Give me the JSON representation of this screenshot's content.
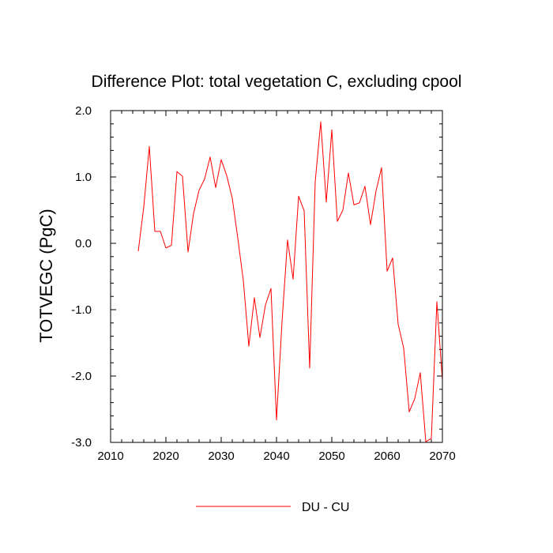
{
  "chart_data": {
    "type": "line",
    "title": "Difference Plot: total vegetation C, excluding cpool",
    "xlabel": "",
    "ylabel": "TOTVEGC  (PgC)",
    "xlim": [
      2010,
      2070
    ],
    "ylim": [
      -3.0,
      2.0
    ],
    "x_ticks": [
      2010,
      2020,
      2030,
      2040,
      2050,
      2060,
      2070
    ],
    "x_tick_labels": [
      "2010",
      "2020",
      "2030",
      "2040",
      "2050",
      "2060",
      "2070"
    ],
    "y_ticks": [
      -3.0,
      -2.0,
      -1.0,
      0.0,
      1.0,
      2.0
    ],
    "y_tick_labels": [
      "-3.0",
      "-2.0",
      "-1.0",
      "0.0",
      "1.0",
      "2.0"
    ],
    "x_minor_step": 2,
    "y_minor_step": 0.2,
    "grid": false,
    "legend_position": "bottom-center",
    "series": [
      {
        "name": "DU - CU",
        "color": "#ff0000",
        "x": [
          2015,
          2016,
          2017,
          2018,
          2019,
          2020,
          2021,
          2022,
          2023,
          2024,
          2025,
          2026,
          2027,
          2028,
          2029,
          2030,
          2031,
          2032,
          2033,
          2034,
          2035,
          2036,
          2037,
          2038,
          2039,
          2040,
          2041,
          2042,
          2043,
          2044,
          2045,
          2046,
          2047,
          2048,
          2049,
          2050,
          2051,
          2052,
          2053,
          2054,
          2055,
          2056,
          2057,
          2058,
          2059,
          2060,
          2061,
          2062,
          2063,
          2064,
          2065,
          2066,
          2067,
          2068,
          2069,
          2070
        ],
        "values": [
          -0.12,
          0.55,
          1.46,
          0.18,
          0.18,
          -0.07,
          -0.03,
          1.08,
          1.01,
          -0.13,
          0.45,
          0.8,
          0.97,
          1.3,
          0.84,
          1.26,
          1.02,
          0.68,
          0.08,
          -0.56,
          -1.55,
          -0.82,
          -1.42,
          -0.93,
          -0.68,
          -2.66,
          -1.18,
          0.05,
          -0.54,
          0.71,
          0.49,
          -1.88,
          0.93,
          1.83,
          0.62,
          1.71,
          0.33,
          0.5,
          1.06,
          0.58,
          0.61,
          0.86,
          0.28,
          0.79,
          1.14,
          -0.42,
          -0.22,
          -1.22,
          -1.58,
          -2.54,
          -2.34,
          -1.95,
          -2.99,
          -2.94,
          -0.88,
          -2.07
        ]
      }
    ]
  }
}
